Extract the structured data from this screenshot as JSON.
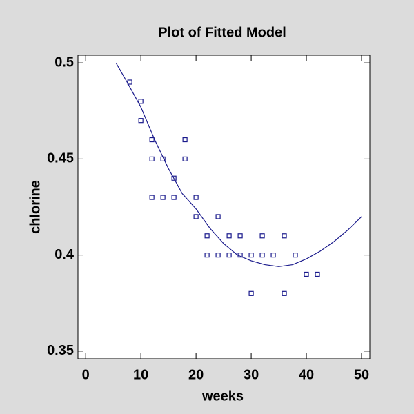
{
  "chart_data": {
    "type": "scatter",
    "title": "Plot of Fitted Model",
    "x_label": "weeks",
    "y_label": "chlorine",
    "xlim": [
      -1.4,
      51.5
    ],
    "ylim": [
      0.346,
      0.504
    ],
    "xticks": [
      0,
      10,
      20,
      30,
      40,
      50
    ],
    "yticks": [
      0.35,
      0.4,
      0.45,
      0.5
    ],
    "series": [
      {
        "type": "scatter",
        "color": "#1a1a8c",
        "x": [
          8,
          10,
          10,
          12,
          12,
          12,
          14,
          14,
          16,
          16,
          18,
          18,
          20,
          20,
          22,
          22,
          24,
          24,
          26,
          26,
          28,
          28,
          30,
          30,
          32,
          32,
          34,
          36,
          36,
          38,
          40,
          42
        ],
        "values": [
          0.49,
          0.48,
          0.47,
          0.46,
          0.45,
          0.43,
          0.45,
          0.43,
          0.44,
          0.43,
          0.46,
          0.45,
          0.43,
          0.42,
          0.41,
          0.4,
          0.42,
          0.4,
          0.41,
          0.4,
          0.41,
          0.4,
          0.4,
          0.38,
          0.41,
          0.4,
          0.4,
          0.41,
          0.38,
          0.4,
          0.39,
          0.39
        ]
      },
      {
        "type": "line",
        "color": "#1a1a8c",
        "x": [
          5.5,
          7.5,
          10,
          12.5,
          15,
          17.5,
          20,
          22.5,
          25,
          27.5,
          30,
          32.5,
          35,
          37.5,
          40,
          42.5,
          45,
          47.5,
          50
        ],
        "values": [
          0.5,
          0.49,
          0.477,
          0.46,
          0.445,
          0.432,
          0.424,
          0.414,
          0.406,
          0.4,
          0.397,
          0.395,
          0.394,
          0.395,
          0.398,
          0.402,
          0.407,
          0.413,
          0.42
        ]
      }
    ]
  }
}
